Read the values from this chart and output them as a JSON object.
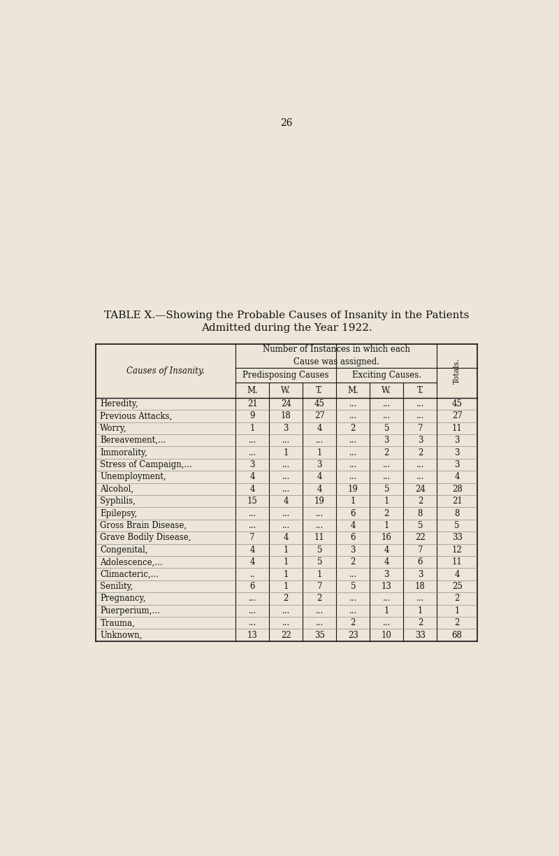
{
  "page_number": "26",
  "title_line1": "TABLE X.—Showing the Probable Causes of Insanity in the Patients",
  "title_line2": "Admitted during the Year 1922.",
  "col_header_predisposing": "Predisposing Causes",
  "col_header_exciting": "Exciting Causes.",
  "col_header_totals": "Totals.",
  "col_sub_headers": [
    "M.",
    "W.",
    "T.",
    "M.",
    "W.",
    "T."
  ],
  "causes_label": "Causes of Insanity.",
  "rows": [
    {
      "cause": "Heredity,",
      "pre_m": "21",
      "pre_w": "24",
      "pre_t": "45",
      "exc_m": "...",
      "exc_w": "...",
      "exc_t": "...",
      "total": "45"
    },
    {
      "cause": "Previous Attacks,",
      "pre_m": "9",
      "pre_w": "18",
      "pre_t": "27",
      "exc_m": "...",
      "exc_w": "...",
      "exc_t": "...",
      "total": "27"
    },
    {
      "cause": "Worry,",
      "pre_m": "1",
      "pre_w": "3",
      "pre_t": "4",
      "exc_m": "2",
      "exc_w": "5",
      "exc_t": "7",
      "total": "11"
    },
    {
      "cause": "Bereavement,...",
      "pre_m": "...",
      "pre_w": "...",
      "pre_t": "...",
      "exc_m": "...",
      "exc_w": "3",
      "exc_t": "3",
      "total": "3"
    },
    {
      "cause": "Immorality,",
      "pre_m": "...",
      "pre_w": "1",
      "pre_t": "1",
      "exc_m": "...",
      "exc_w": "2",
      "exc_t": "2",
      "total": "3"
    },
    {
      "cause": "Stress of Campaign,...",
      "pre_m": "3",
      "pre_w": "...",
      "pre_t": "3",
      "exc_m": "...",
      "exc_w": "...",
      "exc_t": "...",
      "total": "3"
    },
    {
      "cause": "Unemployment,",
      "pre_m": "4",
      "pre_w": "...",
      "pre_t": "4",
      "exc_m": "...",
      "exc_w": "...",
      "exc_t": "...",
      "total": "4"
    },
    {
      "cause": "Alcohol,",
      "pre_m": "4",
      "pre_w": "...",
      "pre_t": "4",
      "exc_m": "19",
      "exc_w": "5",
      "exc_t": "24",
      "total": "28"
    },
    {
      "cause": "Syphilis,",
      "pre_m": "15",
      "pre_w": "4",
      "pre_t": "19",
      "exc_m": "1",
      "exc_w": "1",
      "exc_t": "2",
      "total": "21"
    },
    {
      "cause": "Epilepsy,",
      "pre_m": "...",
      "pre_w": "...",
      "pre_t": "...",
      "exc_m": "6",
      "exc_w": "2",
      "exc_t": "8",
      "total": "8"
    },
    {
      "cause": "Gross Brain Disease,",
      "pre_m": "...",
      "pre_w": "...",
      "pre_t": "...",
      "exc_m": "4",
      "exc_w": "1",
      "exc_t": "5",
      "total": "5"
    },
    {
      "cause": "Grave Bodily Disease,",
      "pre_m": "7",
      "pre_w": "4",
      "pre_t": "11",
      "exc_m": "6",
      "exc_w": "16",
      "exc_t": "22",
      "total": "33"
    },
    {
      "cause": "Congenital,",
      "pre_m": "4",
      "pre_w": "1",
      "pre_t": "5",
      "exc_m": "3",
      "exc_w": "4",
      "exc_t": "7",
      "total": "12"
    },
    {
      "cause": "Adolescence,...",
      "pre_m": "4",
      "pre_w": "1",
      "pre_t": "5",
      "exc_m": "2",
      "exc_w": "4",
      "exc_t": "6",
      "total": "11"
    },
    {
      "cause": "Climacteric,...",
      "pre_m": "..",
      "pre_w": "1",
      "pre_t": "1",
      "exc_m": "...",
      "exc_w": "3",
      "exc_t": "3",
      "total": "4"
    },
    {
      "cause": "Senility,",
      "pre_m": "6",
      "pre_w": "1",
      "pre_t": "7",
      "exc_m": "5",
      "exc_w": "13",
      "exc_t": "18",
      "total": "25"
    },
    {
      "cause": "Pregnancy,",
      "pre_m": "...",
      "pre_w": "2",
      "pre_t": "2",
      "exc_m": "...",
      "exc_w": "...",
      "exc_t": "...",
      "total": "2"
    },
    {
      "cause": "Puerperium,...",
      "pre_m": "...",
      "pre_w": "...",
      "pre_t": "...",
      "exc_m": "...",
      "exc_w": "1",
      "exc_t": "1",
      "total": "1"
    },
    {
      "cause": "Trauma,",
      "pre_m": "...",
      "pre_w": "...",
      "pre_t": "...",
      "exc_m": "2",
      "exc_w": "...",
      "exc_t": "2",
      "total": "2"
    },
    {
      "cause": "Unknown,",
      "pre_m": "13",
      "pre_w": "22",
      "pre_t": "35",
      "exc_m": "23",
      "exc_w": "10",
      "exc_t": "33",
      "total": "68"
    }
  ],
  "background_color": "#ece5d8",
  "text_color": "#111111"
}
